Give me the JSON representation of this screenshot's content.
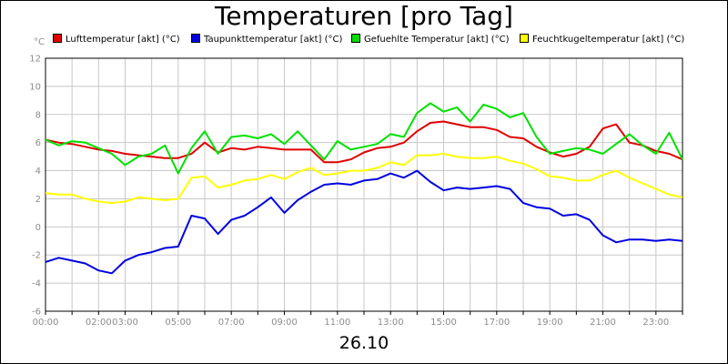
{
  "chart_data": {
    "type": "line",
    "title": "Temperaturen [pro Tag]",
    "ylabel": "°C",
    "xlabel": "26.10",
    "ylim": [
      -6,
      12
    ],
    "yticks": [
      -6,
      -4,
      -2,
      0,
      2,
      4,
      6,
      8,
      10,
      12
    ],
    "xlim_hours": [
      0,
      24
    ],
    "xticks": [
      {
        "hour": 0,
        "label": "00:00"
      },
      {
        "hour": 2,
        "label": "02:00"
      },
      {
        "hour": 3,
        "label": "03:00"
      },
      {
        "hour": 5,
        "label": "05:00"
      },
      {
        "hour": 7,
        "label": "07:00"
      },
      {
        "hour": 9,
        "label": "09:00"
      },
      {
        "hour": 11,
        "label": "11:00"
      },
      {
        "hour": 13,
        "label": "13:00"
      },
      {
        "hour": 15,
        "label": "15:00"
      },
      {
        "hour": 17,
        "label": "17:00"
      },
      {
        "hour": 19,
        "label": "19:00"
      },
      {
        "hour": 21,
        "label": "21:00"
      },
      {
        "hour": 23,
        "label": "23:00"
      }
    ],
    "grid": true,
    "legend_position": "top",
    "x_hours": [
      0,
      0.5,
      1,
      1.5,
      2,
      2.5,
      3,
      3.5,
      4,
      4.5,
      5,
      5.5,
      6,
      6.5,
      7,
      7.5,
      8,
      8.5,
      9,
      9.5,
      10,
      10.5,
      11,
      11.5,
      12,
      12.5,
      13,
      13.5,
      14,
      14.5,
      15,
      15.5,
      16,
      16.5,
      17,
      17.5,
      18,
      18.5,
      19,
      19.5,
      20,
      20.5,
      21,
      21.5,
      22,
      22.5,
      23,
      23.5,
      24
    ],
    "series": [
      {
        "name": "Lufttemperatur [akt] (°C)",
        "color": "#e00000",
        "values": [
          6.2,
          6.0,
          5.9,
          5.7,
          5.5,
          5.4,
          5.2,
          5.1,
          5.0,
          4.9,
          4.9,
          5.2,
          6.0,
          5.3,
          5.6,
          5.5,
          5.7,
          5.6,
          5.5,
          5.5,
          5.5,
          4.6,
          4.6,
          4.8,
          5.3,
          5.6,
          5.7,
          6.0,
          6.8,
          7.4,
          7.5,
          7.3,
          7.1,
          7.1,
          6.9,
          6.4,
          6.3,
          5.7,
          5.3,
          5.0,
          5.2,
          5.7,
          7.0,
          7.3,
          6.0,
          5.8,
          5.4,
          5.2,
          4.8
        ]
      },
      {
        "name": "Taupunkttemperatur [akt] (°C)",
        "color": "#0000e0",
        "values": [
          -2.5,
          -2.2,
          -2.4,
          -2.6,
          -3.1,
          -3.3,
          -2.4,
          -2.0,
          -1.8,
          -1.5,
          -1.4,
          0.8,
          0.6,
          -0.5,
          0.5,
          0.8,
          1.4,
          2.1,
          1.0,
          1.9,
          2.5,
          3.0,
          3.1,
          3.0,
          3.3,
          3.4,
          3.8,
          3.5,
          4.0,
          3.2,
          2.6,
          2.8,
          2.7,
          2.8,
          2.9,
          2.7,
          1.7,
          1.4,
          1.3,
          0.8,
          0.9,
          0.5,
          -0.6,
          -1.1,
          -0.9,
          -0.9,
          -1.0,
          -0.9,
          -1.0
        ]
      },
      {
        "name": "Gefuehlte Temperatur [akt] (°C)",
        "color": "#00e000",
        "values": [
          6.2,
          5.8,
          6.1,
          6.0,
          5.6,
          5.2,
          4.4,
          5.0,
          5.2,
          5.8,
          3.8,
          5.6,
          6.8,
          5.2,
          6.4,
          6.5,
          6.3,
          6.6,
          5.9,
          6.8,
          5.8,
          4.8,
          6.1,
          5.5,
          5.7,
          5.9,
          6.6,
          6.4,
          8.1,
          8.8,
          8.2,
          8.5,
          7.5,
          8.7,
          8.4,
          7.8,
          8.1,
          6.4,
          5.2,
          5.4,
          5.6,
          5.5,
          5.2,
          5.9,
          6.6,
          5.8,
          5.2,
          6.7,
          4.8
        ]
      },
      {
        "name": "Feuchtkugeltemperatur [akt] (°C)",
        "color": "#ffff00",
        "values": [
          2.4,
          2.3,
          2.3,
          2.0,
          1.8,
          1.7,
          1.8,
          2.1,
          2.0,
          1.9,
          2.0,
          3.5,
          3.6,
          2.8,
          3.0,
          3.3,
          3.4,
          3.7,
          3.4,
          3.9,
          4.2,
          3.7,
          3.8,
          4.0,
          4.0,
          4.2,
          4.6,
          4.4,
          5.1,
          5.1,
          5.2,
          5.0,
          4.9,
          4.9,
          5.0,
          4.7,
          4.5,
          4.1,
          3.6,
          3.5,
          3.3,
          3.3,
          3.7,
          4.0,
          3.5,
          3.1,
          2.7,
          2.3,
          2.1
        ]
      }
    ]
  }
}
